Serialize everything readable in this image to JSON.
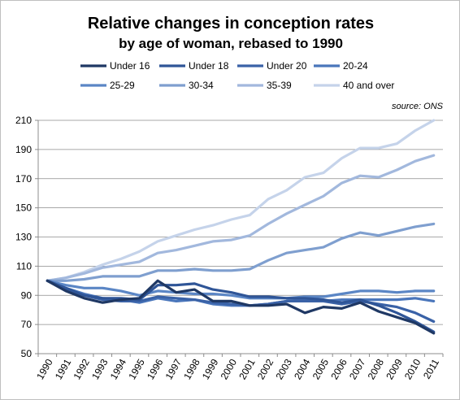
{
  "chart_data": {
    "type": "line",
    "title": "Relative changes in conception rates",
    "subtitle": "by age of woman, rebased to 1990",
    "source": "source: ONS",
    "xlabel": "",
    "ylabel": "",
    "ylim": [
      50,
      210
    ],
    "yticks": [
      50,
      70,
      90,
      110,
      130,
      150,
      170,
      190,
      210
    ],
    "grid": true,
    "legend_position": "top",
    "x": [
      "1990",
      "1991",
      "1992",
      "1993",
      "1994",
      "1995",
      "1996",
      "1997",
      "1998",
      "1999",
      "2000",
      "2001",
      "2002",
      "2003",
      "2004",
      "2005",
      "2006",
      "2007",
      "2008",
      "2009",
      "2010",
      "2011"
    ],
    "series": [
      {
        "name": "Under 16",
        "color": "#1f3864",
        "values": [
          100,
          93,
          88,
          85,
          87,
          88,
          100,
          92,
          94,
          86,
          86,
          83,
          83,
          84,
          78,
          82,
          81,
          85,
          79,
          75,
          71,
          64
        ]
      },
      {
        "name": "Under 18",
        "color": "#2f5597",
        "values": [
          100,
          95,
          90,
          88,
          88,
          87,
          97,
          97,
          98,
          94,
          92,
          89,
          89,
          88,
          88,
          87,
          85,
          87,
          83,
          78,
          72,
          65
        ]
      },
      {
        "name": "Under 20",
        "color": "#3a62a7",
        "values": [
          100,
          94,
          90,
          87,
          86,
          86,
          89,
          88,
          87,
          85,
          84,
          83,
          84,
          86,
          86,
          86,
          84,
          86,
          84,
          82,
          78,
          72
        ]
      },
      {
        "name": "20-24",
        "color": "#4a76bb",
        "values": [
          100,
          95,
          91,
          88,
          87,
          85,
          88,
          86,
          87,
          84,
          83,
          83,
          84,
          86,
          87,
          86,
          87,
          87,
          87,
          87,
          88,
          86
        ]
      },
      {
        "name": "25-29",
        "color": "#5b86c5",
        "values": [
          100,
          97,
          95,
          95,
          93,
          90,
          93,
          92,
          91,
          91,
          90,
          88,
          88,
          88,
          89,
          89,
          91,
          93,
          93,
          92,
          93,
          93
        ]
      },
      {
        "name": "30-34",
        "color": "#7f9fcf",
        "values": [
          100,
          100,
          101,
          103,
          103,
          103,
          107,
          107,
          108,
          107,
          107,
          108,
          114,
          119,
          121,
          123,
          129,
          133,
          131,
          134,
          137,
          139
        ]
      },
      {
        "name": "35-39",
        "color": "#a2b8dd",
        "values": [
          100,
          102,
          105,
          109,
          111,
          113,
          119,
          121,
          124,
          127,
          128,
          131,
          139,
          146,
          152,
          158,
          167,
          172,
          171,
          176,
          182,
          186
        ]
      },
      {
        "name": "40 and over",
        "color": "#c5d3ea",
        "values": [
          100,
          102,
          106,
          111,
          115,
          120,
          127,
          131,
          135,
          138,
          142,
          145,
          156,
          162,
          171,
          174,
          184,
          191,
          191,
          194,
          203,
          210
        ]
      }
    ]
  }
}
